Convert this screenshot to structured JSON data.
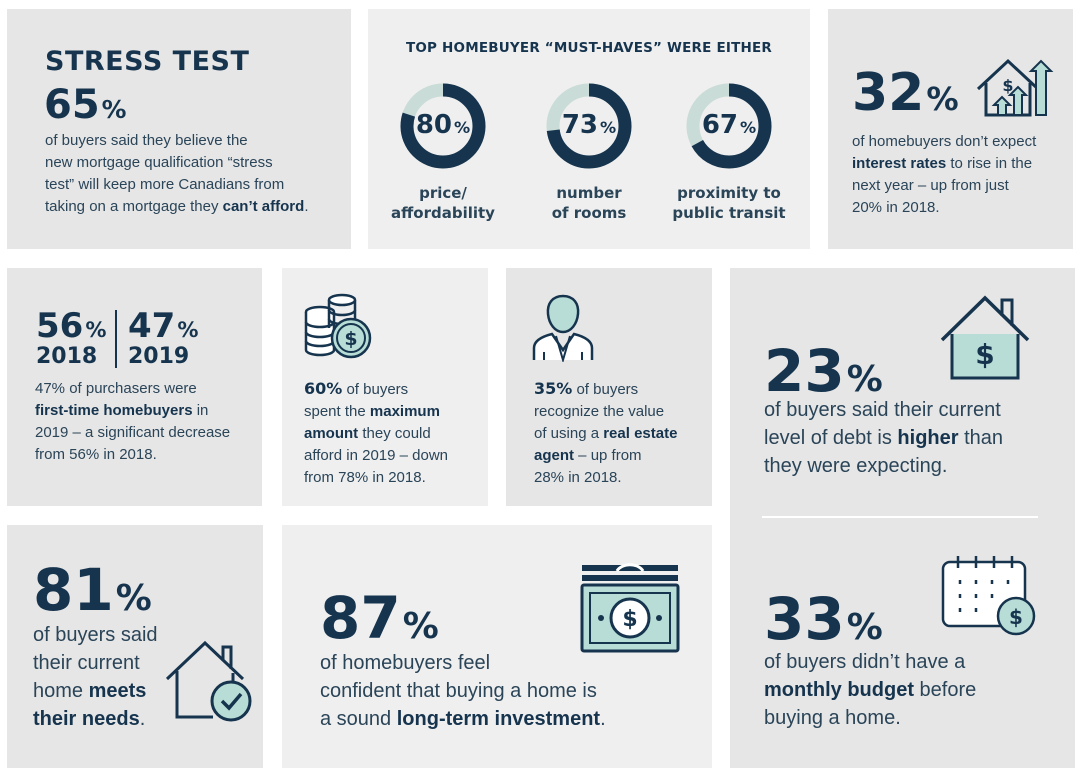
{
  "stress": {
    "title": "STRESS TEST",
    "value": "65",
    "pct": "%",
    "lines": [
      "of buyers said they believe the",
      "new mortgage qualification “stress",
      "test” will keep more Canadians from"
    ],
    "line4_pre": "taking on a mortgage they ",
    "line4_bold": "can’t afford",
    "line4_post": "."
  },
  "musthaves": {
    "heading": "TOP HOMEBUYER “MUST-HAVES” WERE EITHER",
    "items": [
      {
        "value": "80",
        "pct": "%",
        "fraction": 0.8,
        "label1": "price/",
        "label2": "affordability"
      },
      {
        "value": "73",
        "pct": "%",
        "fraction": 0.73,
        "label1": "number",
        "label2": "of rooms"
      },
      {
        "value": "67",
        "pct": "%",
        "fraction": 0.67,
        "label1": "proximity to",
        "label2": "public transit"
      }
    ]
  },
  "rates": {
    "value": "32",
    "pct": "%",
    "l1": "of homebuyers don’t expect",
    "l2_bold": "interest rates",
    "l2_post": " to rise in the",
    "l3": "next year – up from just",
    "l4": "20% in 2018."
  },
  "firsttime": {
    "v1": "56",
    "v2": "47",
    "pct": "%",
    "y1": "2018",
    "y2": "2019",
    "l1": "47% of purchasers were",
    "l2_bold": "first-time homebuyers",
    "l2_post": " in",
    "l3": "2019 – a significant decrease",
    "l4": "from 56% in 2018."
  },
  "maximum": {
    "v": "60",
    "pct": "%",
    "l1_post": " of buyers",
    "l2_pre": "spent the ",
    "l2_bold": "maximum",
    "l3_bold": "amount",
    "l3_post": " they could",
    "l4": "afford in 2019 – down",
    "l5": "from 78% in 2018."
  },
  "agent": {
    "v": "35",
    "pct": "%",
    "l1_post": " of buyers",
    "l2": "recognize the value",
    "l3_pre": "of using a ",
    "l3_bold": "real estate",
    "l4_bold": "agent",
    "l4_post": " – up from",
    "l5": "28% in 2018."
  },
  "debt": {
    "v": "23",
    "pct": "%",
    "l1": "of buyers said their current",
    "l2_pre": "level of debt is ",
    "l2_bold": "higher",
    "l2_post": " than",
    "l3": "they were expecting."
  },
  "budget": {
    "v": "33",
    "pct": "%",
    "l1": "of buyers didn’t have a",
    "l2_bold": "monthly budget",
    "l2_post": " before",
    "l3": "buying a home."
  },
  "needs": {
    "v": "81",
    "pct": "%",
    "l1": "of buyers said",
    "l2": "their current",
    "l3_pre": "home ",
    "l3_bold": "meets",
    "l4_bold": "their needs",
    "l4_post": "."
  },
  "investment": {
    "v": "87",
    "pct": "%",
    "l1": "of homebuyers feel",
    "l2": "confident that buying a home is",
    "l3_pre": "a sound ",
    "l3_bold": "long-term investment",
    "l3_post": "."
  },
  "icons": {
    "dollar": "$",
    "colors": {
      "navy": "#16344e",
      "mint": "#b8ddd6",
      "donut_track": "#c9dcd7"
    }
  }
}
